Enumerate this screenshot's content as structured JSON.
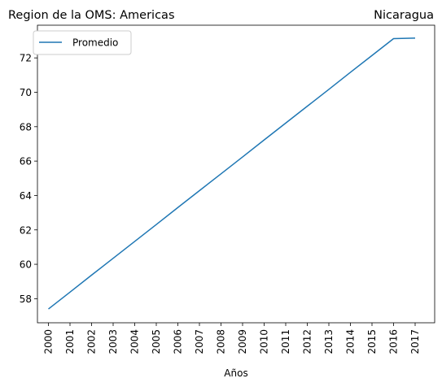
{
  "chart_data": {
    "type": "line",
    "title_left": "Region de la OMS: Americas",
    "title_right": "Nicaragua",
    "xlabel": "Años",
    "ylabel": "",
    "categories": [
      "2000",
      "2001",
      "2002",
      "2003",
      "2004",
      "2005",
      "2006",
      "2007",
      "2008",
      "2009",
      "2010",
      "2011",
      "2012",
      "2013",
      "2014",
      "2015",
      "2016",
      "2017"
    ],
    "series": [
      {
        "name": "Promedio",
        "color": "#1f77b4",
        "values": [
          57.4,
          58.38,
          59.37,
          60.35,
          61.33,
          62.31,
          63.3,
          64.28,
          65.26,
          66.24,
          67.23,
          68.21,
          69.19,
          70.17,
          71.16,
          72.14,
          73.12,
          73.15
        ]
      }
    ],
    "yticks": [
      58,
      60,
      62,
      64,
      66,
      68,
      70,
      72
    ],
    "ylim": [
      56.6,
      73.9
    ],
    "legend_position": "top-left",
    "grid": false
  }
}
